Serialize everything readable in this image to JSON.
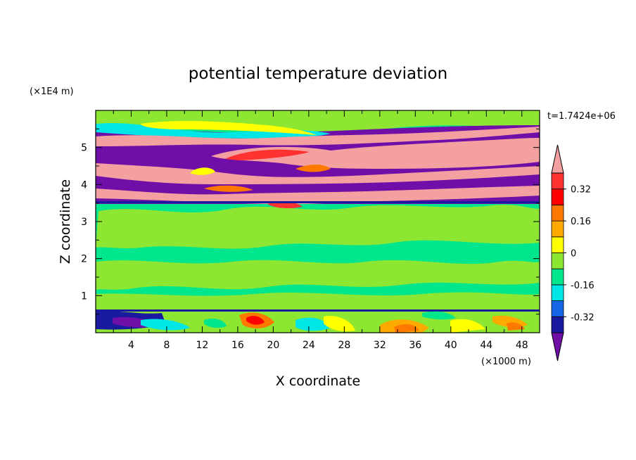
{
  "chart_data": {
    "type": "heatmap",
    "title": "potential temperature deviation",
    "xlabel": "X coordinate",
    "ylabel": "Z coordinate",
    "x_unit": "(×1000 m)",
    "y_unit": "(×1E4 m)",
    "time_label": "t=1.7424e+06",
    "xlim": [
      0,
      50
    ],
    "ylim": [
      0,
      6
    ],
    "x_ticks": [
      "4",
      "8",
      "12",
      "16",
      "20",
      "24",
      "28",
      "32",
      "36",
      "40",
      "44",
      "48"
    ],
    "y_ticks": [
      "1",
      "2",
      "3",
      "4",
      "5"
    ],
    "colorbar": {
      "levels": [
        "0.32",
        "0.16",
        "0",
        "-0.16",
        "-0.32"
      ],
      "colors": [
        "#6f0fa8",
        "#1a1aa0",
        "#1464e6",
        "#00e6e6",
        "#00e68c",
        "#8ce632",
        "#ffff00",
        "#ffaa00",
        "#ff7800",
        "#ff0000",
        "#ff3232",
        "#f5a0a0"
      ]
    },
    "bands": [
      {
        "z": [
          0.0,
          0.6
        ],
        "pattern": "noisy mixed warm and cool anomalies"
      },
      {
        "z": [
          0.6,
          3.5
        ],
        "pattern": "green near-zero field"
      },
      {
        "z": [
          3.5,
          5.6
        ],
        "pattern": "alternating strong positive (pink) and negative (purple) layers"
      },
      {
        "z": [
          5.6,
          6.0
        ],
        "pattern": "green near-zero field"
      }
    ]
  }
}
